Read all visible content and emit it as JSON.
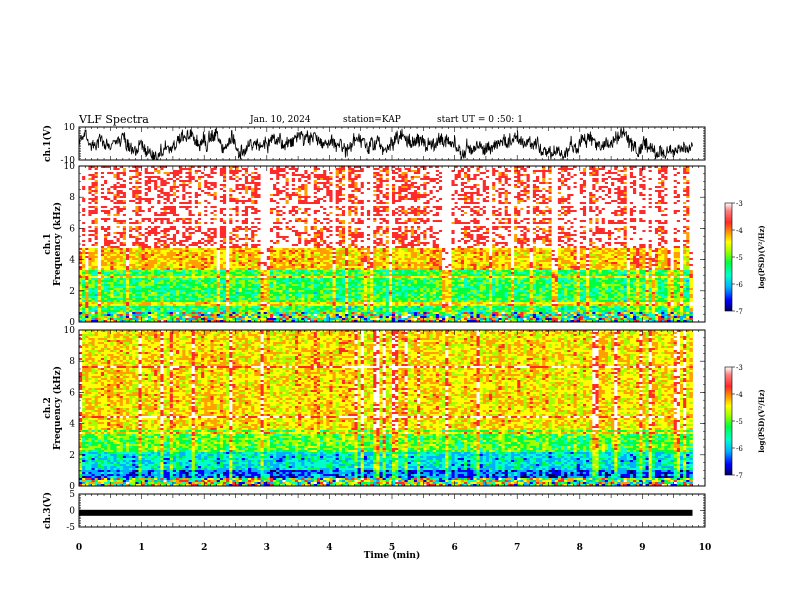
{
  "header": {
    "title": "VLF Spectra",
    "date": "Jan. 10, 2024",
    "station": "station=KAP",
    "start": "start UT =  0 :50: 1"
  },
  "chart_data": [
    {
      "type": "line",
      "id": "ch1-waveform",
      "ylabel": "ch.1(V)",
      "ylim": [
        -10,
        10
      ],
      "yticks": [
        "10",
        "-10"
      ],
      "xlim": [
        0,
        10
      ],
      "color": "#000000"
    },
    {
      "type": "heatmap",
      "id": "ch1-spectrogram",
      "ylabel": "ch.1\nFrequency (kHz)",
      "ylim": [
        0,
        10
      ],
      "yticks": [
        "0",
        "2",
        "4",
        "6",
        "8",
        "10"
      ],
      "xlim": [
        0,
        9.8
      ],
      "bands": [
        {
          "from": 0,
          "to": 0.6,
          "level": "mixed-low"
        },
        {
          "from": 0.6,
          "to": 1.0,
          "level": -5.3
        },
        {
          "from": 1.0,
          "to": 3.3,
          "level": -5.2
        },
        {
          "from": 3.3,
          "to": 4.8,
          "level": -4.2
        },
        {
          "from": 4.8,
          "to": 10,
          "level": -3.4
        }
      ],
      "colorbar": {
        "label": "log(PSD)(V²/Hz)",
        "ticks": [
          "-3",
          "-4",
          "-5",
          "-6",
          "-7"
        ],
        "range": [
          -7,
          -3
        ]
      }
    },
    {
      "type": "heatmap",
      "id": "ch2-spectrogram",
      "ylabel": "ch.2\nFrequency (kHz)",
      "ylim": [
        0,
        10
      ],
      "yticks": [
        "0",
        "2",
        "4",
        "6",
        "8",
        "10"
      ],
      "xlim": [
        0,
        9.8
      ],
      "bands": [
        {
          "from": 0,
          "to": 0.5,
          "level": "mixed-low"
        },
        {
          "from": 0.5,
          "to": 1.0,
          "level": -6.2
        },
        {
          "from": 1.0,
          "to": 2.2,
          "level": -5.7
        },
        {
          "from": 2.2,
          "to": 3.6,
          "level": -5.0
        },
        {
          "from": 3.6,
          "to": 10,
          "level": -4.3
        }
      ],
      "colorbar": {
        "label": "log(PSD)(V²/Hz)",
        "ticks": [
          "-3",
          "-4",
          "-5",
          "-6",
          "-7"
        ],
        "range": [
          -7,
          -3
        ]
      }
    },
    {
      "type": "line",
      "id": "ch3-waveform",
      "ylabel": "ch.3(V)",
      "ylim": [
        -5,
        5
      ],
      "yticks": [
        "5",
        "0",
        "-5"
      ],
      "xlim": [
        0,
        10
      ],
      "level": -0.7,
      "color": "#000000"
    }
  ],
  "xaxis": {
    "label": "Time (min)",
    "ticks": [
      "0",
      "1",
      "2",
      "3",
      "4",
      "5",
      "6",
      "7",
      "8",
      "9",
      "10"
    ],
    "range": [
      0,
      10
    ],
    "data_end": 9.8
  },
  "colormap": [
    "#000060",
    "#0000ff",
    "#00b0ff",
    "#00ffcc",
    "#00ff40",
    "#a0ff00",
    "#ffff00",
    "#ffa000",
    "#ff2a2a",
    "#ffffff"
  ]
}
